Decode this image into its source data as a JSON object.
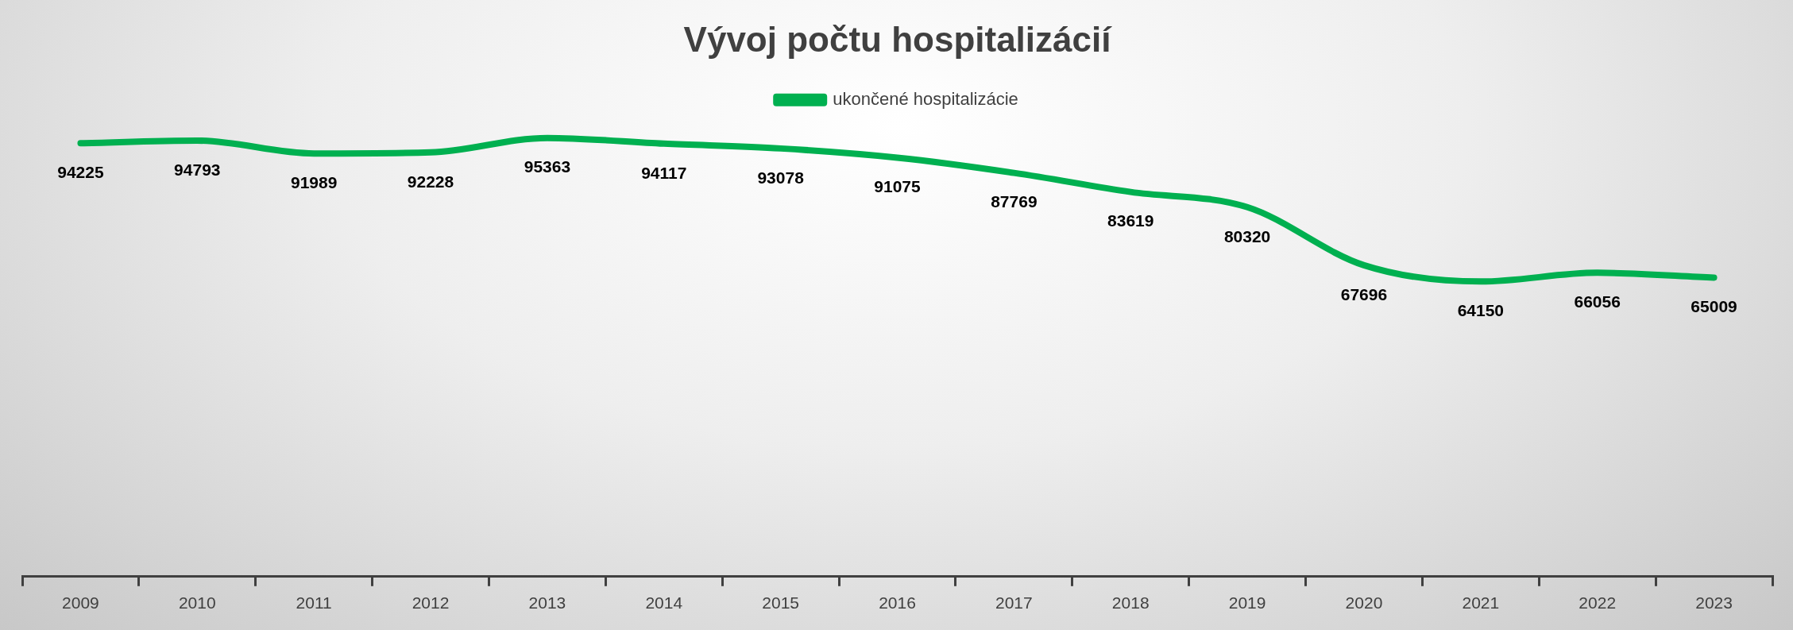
{
  "chart_data": {
    "type": "line",
    "title": "Vývoj počtu hospitalizácií",
    "categories": [
      "2009",
      "2010",
      "2011",
      "2012",
      "2013",
      "2014",
      "2015",
      "2016",
      "2017",
      "2018",
      "2019",
      "2020",
      "2021",
      "2022",
      "2023"
    ],
    "series": [
      {
        "name": "ukončené hospitalizácie",
        "color": "#00b050",
        "values": [
          94225,
          94793,
          91989,
          92228,
          95363,
          94117,
          93078,
          91075,
          87769,
          83619,
          80320,
          67696,
          64150,
          66056,
          65009
        ]
      }
    ],
    "tick_labels": "x",
    "data_labels": true,
    "legend": "top",
    "grid": false,
    "marker": "none",
    "line_style": "solid"
  }
}
